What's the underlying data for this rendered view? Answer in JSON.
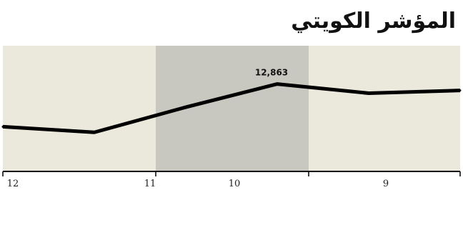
{
  "chart_data": {
    "type": "line",
    "title": "المؤشر الكويتي",
    "x_ticks": [
      "12",
      "11",
      "10",
      "9"
    ],
    "x_axis_direction": "right-to-left",
    "series": [
      {
        "values": [
          12710,
          12690,
          12780,
          12863,
          12830,
          12840
        ]
      }
    ],
    "data_labels": [
      {
        "text": "12,863",
        "index": 3
      }
    ],
    "ylim": [
      12550,
      13000
    ],
    "shaded_band": "around tick 10",
    "colors": {
      "background": "#ebe8dc",
      "band": "#c9c8c0",
      "line": "#000000",
      "axis": "#000000"
    },
    "grid": false
  }
}
